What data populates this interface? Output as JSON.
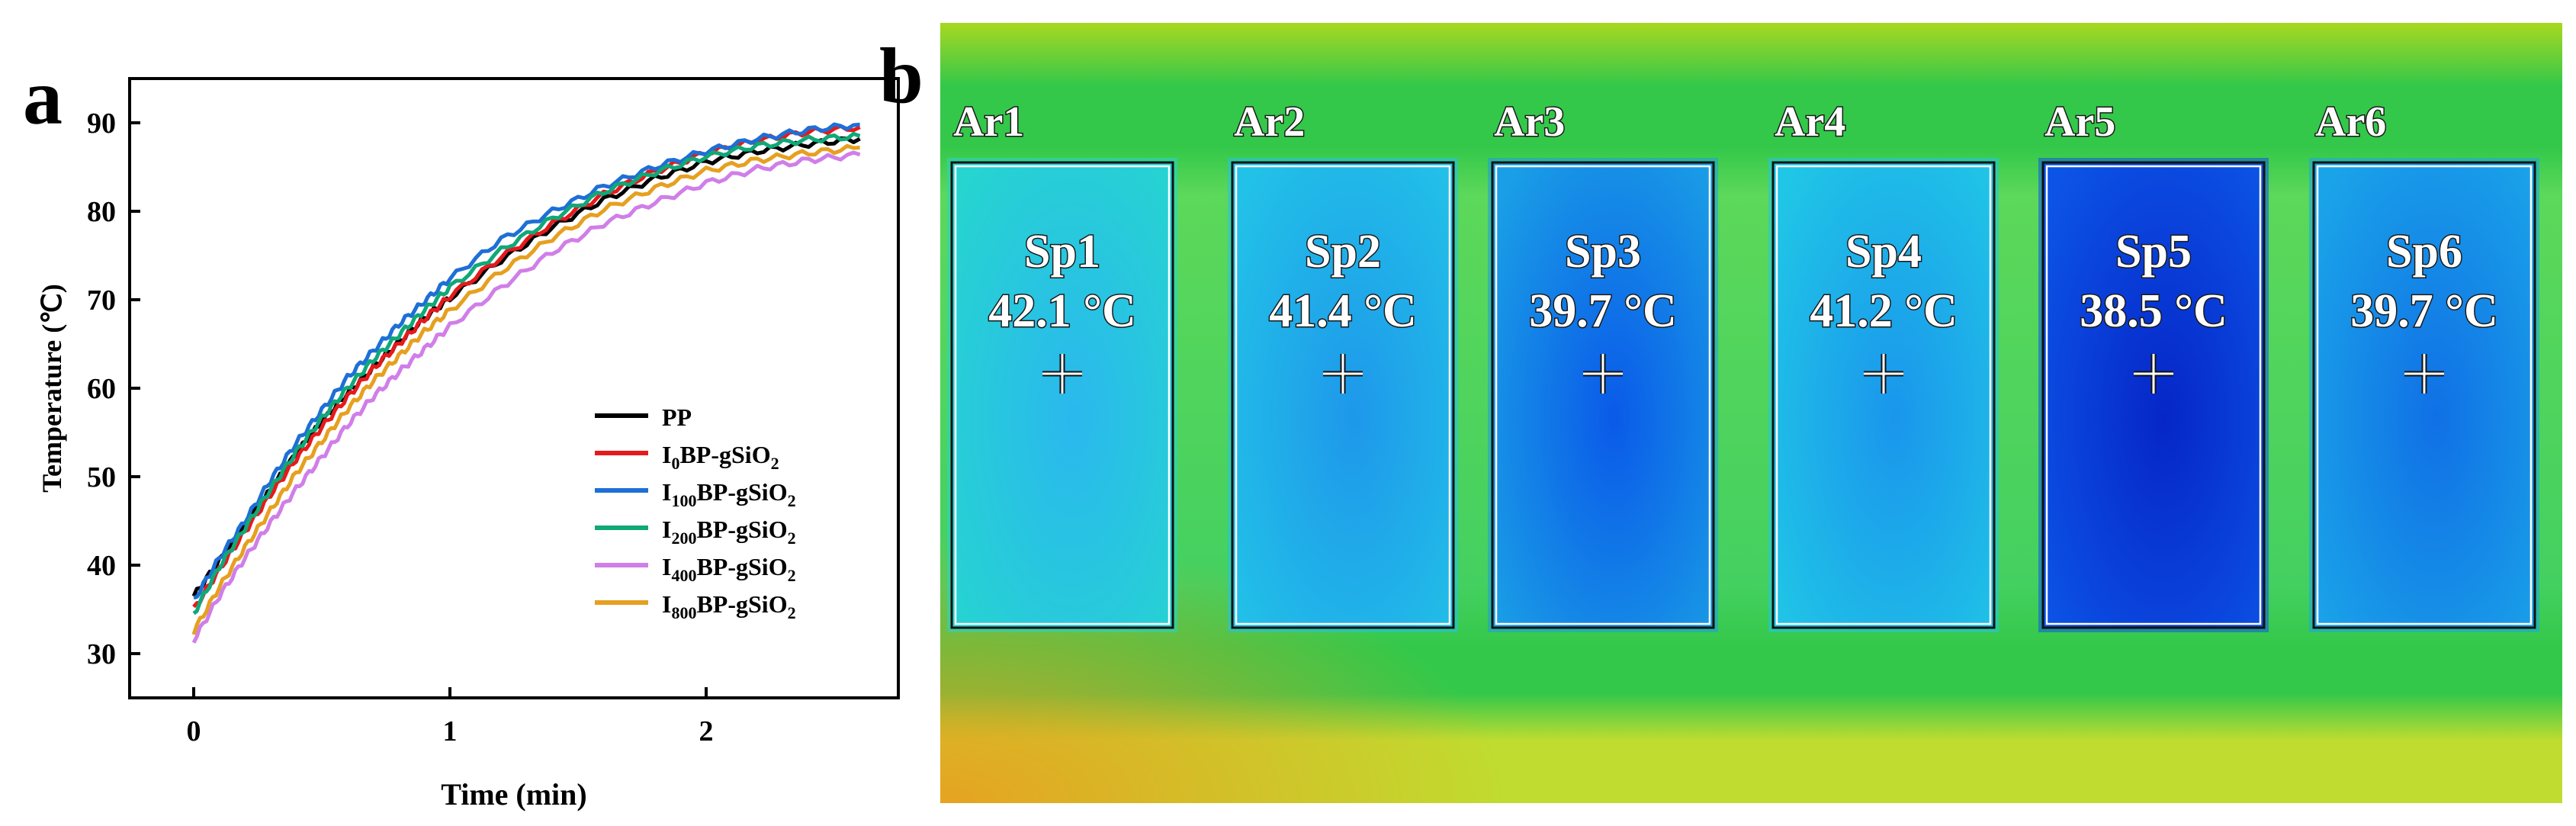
{
  "panels": {
    "a_label": "a",
    "b_label": "b"
  },
  "chart_data": {
    "type": "line",
    "xlabel": "Time (min)",
    "ylabel": "Temperature (℃)",
    "xlim": [
      -0.25,
      2.75
    ],
    "ylim": [
      25,
      95
    ],
    "xticks": [
      0,
      1,
      2
    ],
    "yticks": [
      30,
      40,
      50,
      60,
      70,
      80,
      90
    ],
    "grid": false,
    "legend_position": "bottom-right",
    "series": [
      {
        "name": "PP",
        "sub": "",
        "suffix": "",
        "color": "#000000",
        "x": [
          0,
          0.1,
          0.2,
          0.3,
          0.4,
          0.5,
          0.6,
          0.7,
          0.8,
          0.9,
          1.0,
          1.2,
          1.4,
          1.6,
          1.8,
          2.0,
          2.2,
          2.4,
          2.6
        ],
        "y": [
          36.5,
          40.5,
          44.4,
          48.5,
          52.6,
          56.2,
          59.4,
          62.3,
          65.2,
          67.9,
          70.2,
          74.5,
          78.2,
          81.3,
          83.7,
          85.6,
          86.8,
          87.6,
          88.2
        ]
      },
      {
        "name": "I",
        "sub": "0",
        "suffix": "BP-gSiO",
        "suffix_sub": "2",
        "color": "#e41a1c",
        "x": [
          0,
          0.1,
          0.2,
          0.3,
          0.4,
          0.5,
          0.6,
          0.7,
          0.8,
          0.9,
          1.0,
          1.2,
          1.4,
          1.6,
          1.8,
          2.0,
          2.2,
          2.4,
          2.6
        ],
        "y": [
          35.0,
          39.5,
          43.8,
          48.0,
          52.0,
          55.6,
          59.0,
          62.2,
          65.0,
          67.8,
          70.4,
          74.8,
          78.6,
          81.9,
          84.5,
          86.6,
          88.0,
          89.0,
          89.5
        ]
      },
      {
        "name": "I",
        "sub": "100",
        "suffix": "BP-gSiO",
        "suffix_sub": "2",
        "color": "#1e6fd6",
        "x": [
          0,
          0.1,
          0.2,
          0.3,
          0.4,
          0.5,
          0.6,
          0.7,
          0.8,
          0.9,
          1.0,
          1.2,
          1.4,
          1.6,
          1.8,
          2.0,
          2.2,
          2.4,
          2.6
        ],
        "y": [
          36.0,
          40.8,
          45.0,
          49.6,
          53.8,
          57.5,
          61.2,
          64.2,
          67.2,
          69.8,
          72.4,
          76.8,
          80.0,
          82.8,
          85.0,
          86.8,
          88.2,
          89.2,
          89.8
        ]
      },
      {
        "name": "I",
        "sub": "200",
        "suffix": "BP-gSiO",
        "suffix_sub": "2",
        "color": "#10a878",
        "x": [
          0,
          0.1,
          0.2,
          0.3,
          0.4,
          0.5,
          0.6,
          0.7,
          0.8,
          0.9,
          1.0,
          1.2,
          1.4,
          1.6,
          1.8,
          2.0,
          2.2,
          2.4,
          2.6
        ],
        "y": [
          34.5,
          39.8,
          44.2,
          48.6,
          52.8,
          56.6,
          60.0,
          63.2,
          66.0,
          68.8,
          71.4,
          75.6,
          79.2,
          82.2,
          84.4,
          86.2,
          87.4,
          88.1,
          88.5
        ]
      },
      {
        "name": "I",
        "sub": "400",
        "suffix": "BP-gSiO",
        "suffix_sub": "2",
        "color": "#d07ee8",
        "x": [
          0,
          0.1,
          0.2,
          0.3,
          0.4,
          0.5,
          0.6,
          0.7,
          0.8,
          0.9,
          1.0,
          1.2,
          1.4,
          1.6,
          1.8,
          2.0,
          2.2,
          2.4,
          2.6
        ],
        "y": [
          31.5,
          36.5,
          40.8,
          44.8,
          48.6,
          52.2,
          55.8,
          59.0,
          61.8,
          64.4,
          67.0,
          71.4,
          75.4,
          78.6,
          81.0,
          83.2,
          84.8,
          85.8,
          86.4
        ]
      },
      {
        "name": "I",
        "sub": "800",
        "suffix": "BP-gSiO",
        "suffix_sub": "2",
        "color": "#e6a020",
        "x": [
          0,
          0.1,
          0.2,
          0.3,
          0.4,
          0.5,
          0.6,
          0.7,
          0.8,
          0.9,
          1.0,
          1.2,
          1.4,
          1.6,
          1.8,
          2.0,
          2.2,
          2.4,
          2.6
        ],
        "y": [
          32.5,
          37.5,
          42.0,
          46.2,
          50.4,
          54.0,
          57.6,
          60.8,
          63.6,
          66.4,
          68.8,
          73.2,
          77.0,
          80.2,
          82.6,
          84.6,
          85.8,
          86.6,
          87.2
        ]
      }
    ]
  },
  "thermal": {
    "colors": {
      "background_top": "#a8d820",
      "background_band": "#34c84a",
      "background_bottom": "#c0dc30",
      "corner_warm": "#e8a020"
    },
    "regions": [
      {
        "area": "Ar1",
        "spot": "Sp1",
        "temp": "42.1 °C",
        "fill": "#26d4d0",
        "center": "#2ab8ee"
      },
      {
        "area": "Ar2",
        "spot": "Sp2",
        "temp": "41.4 °C",
        "fill": "#22c2e8",
        "center": "#1e98ea"
      },
      {
        "area": "Ar3",
        "spot": "Sp3",
        "temp": "39.7 °C",
        "fill": "#1a9fe6",
        "center": "#0a5ae8"
      },
      {
        "area": "Ar4",
        "spot": "Sp4",
        "temp": "41.2 °C",
        "fill": "#20c6e6",
        "center": "#1a96ec"
      },
      {
        "area": "Ar5",
        "spot": "Sp5",
        "temp": "38.5 °C",
        "fill": "#0c54e6",
        "center": "#0626c8"
      },
      {
        "area": "Ar6",
        "spot": "Sp6",
        "temp": "39.7 °C",
        "fill": "#1aa4e8",
        "center": "#1070e6"
      }
    ]
  }
}
